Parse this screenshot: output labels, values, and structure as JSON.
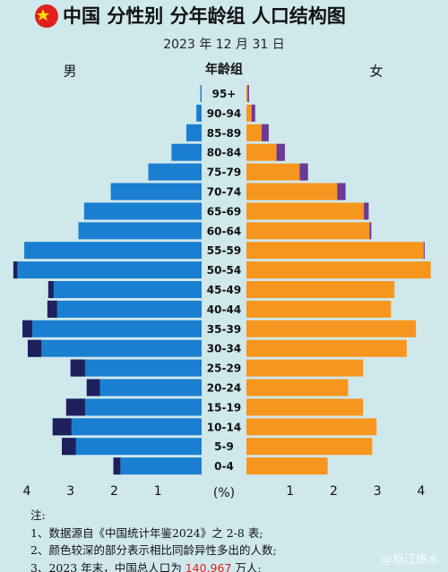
{
  "chart_data": {
    "type": "bar",
    "title": "中国 分性别 分年龄组 人口结构图",
    "subtitle": "2023 年 12 月 31 日",
    "category_label": "年龄组",
    "x_label": "(%)",
    "categories": [
      "95+",
      "90-94",
      "85-89",
      "80-84",
      "75-79",
      "70-74",
      "65-69",
      "60-64",
      "55-59",
      "50-54",
      "45-49",
      "40-44",
      "35-39",
      "30-34",
      "25-29",
      "20-24",
      "15-19",
      "10-14",
      "5-9",
      "0-4"
    ],
    "series": [
      {
        "name": "男",
        "color": "#1a7fd0",
        "excess_color": "#1f1f5c",
        "values": [
          0.03,
          0.12,
          0.35,
          0.69,
          1.22,
          2.08,
          2.69,
          2.82,
          4.06,
          4.31,
          3.51,
          3.53,
          4.1,
          3.98,
          3.0,
          2.63,
          3.1,
          3.41,
          3.2,
          2.02
        ]
      },
      {
        "name": "女",
        "color": "#f7961e",
        "excess_color": "#6a3a9a",
        "values": [
          0.06,
          0.2,
          0.51,
          0.88,
          1.41,
          2.27,
          2.8,
          2.86,
          4.08,
          4.22,
          3.39,
          3.31,
          3.88,
          3.67,
          2.67,
          2.33,
          2.67,
          2.98,
          2.88,
          1.86
        ]
      }
    ],
    "xlim": [
      0,
      4.4
    ],
    "xticks": [
      1,
      2,
      3,
      4
    ]
  },
  "notes": {
    "heading": "注:",
    "items": [
      "1、数据源自《中国统计年鉴2024》之 2-8 表;",
      "2、颜色较深的部分表示相比同龄异性多出的人数;"
    ],
    "last": {
      "before": "3、2023 年末，中国总人口为 ",
      "highlight": "140,967",
      "after": " 万人;"
    }
  },
  "watermark": "@粗江络水"
}
